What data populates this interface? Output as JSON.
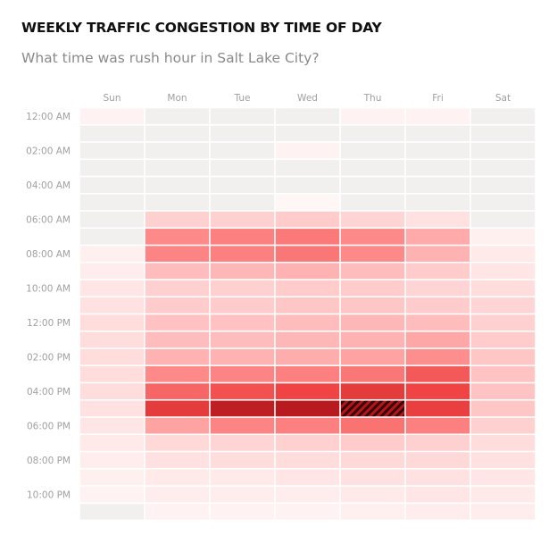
{
  "title": "WEEKLY TRAFFIC CONGESTION BY TIME OF DAY",
  "subtitle": "What time was rush hour in Salt Lake City?",
  "chart_data": {
    "type": "heatmap",
    "columns": [
      "Sun",
      "Mon",
      "Tue",
      "Wed",
      "Thu",
      "Fri",
      "Sat"
    ],
    "row_labels": [
      "12:00 AM",
      "",
      "02:00 AM",
      "",
      "04:00 AM",
      "",
      "06:00 AM",
      "",
      "08:00 AM",
      "",
      "10:00 AM",
      "",
      "12:00 PM",
      "",
      "02:00 PM",
      "",
      "04:00 PM",
      "",
      "06:00 PM",
      "",
      "08:00 PM",
      "",
      "10:00 PM",
      ""
    ],
    "values": [
      [
        0.04,
        -0.06,
        -0.06,
        -0.06,
        0.04,
        0.04,
        -0.06
      ],
      [
        -0.06,
        -0.06,
        -0.06,
        -0.06,
        -0.06,
        -0.06,
        -0.06
      ],
      [
        -0.06,
        -0.06,
        -0.06,
        0.04,
        -0.06,
        -0.06,
        -0.06
      ],
      [
        -0.06,
        -0.06,
        -0.06,
        -0.06,
        -0.06,
        -0.06,
        -0.06
      ],
      [
        -0.06,
        -0.06,
        -0.06,
        -0.06,
        -0.06,
        -0.06,
        -0.06
      ],
      [
        -0.06,
        -0.06,
        -0.06,
        0.02,
        -0.06,
        -0.06,
        -0.06
      ],
      [
        -0.06,
        0.2,
        0.2,
        0.22,
        0.18,
        0.12,
        -0.06
      ],
      [
        -0.06,
        0.48,
        0.52,
        0.55,
        0.48,
        0.35,
        0.05
      ],
      [
        0.05,
        0.5,
        0.52,
        0.56,
        0.48,
        0.32,
        0.08
      ],
      [
        0.06,
        0.28,
        0.3,
        0.32,
        0.28,
        0.22,
        0.1
      ],
      [
        0.1,
        0.2,
        0.2,
        0.22,
        0.22,
        0.18,
        0.14
      ],
      [
        0.12,
        0.22,
        0.22,
        0.24,
        0.24,
        0.22,
        0.18
      ],
      [
        0.14,
        0.26,
        0.26,
        0.28,
        0.3,
        0.28,
        0.2
      ],
      [
        0.14,
        0.28,
        0.28,
        0.3,
        0.32,
        0.36,
        0.22
      ],
      [
        0.14,
        0.32,
        0.32,
        0.34,
        0.38,
        0.46,
        0.24
      ],
      [
        0.14,
        0.48,
        0.5,
        0.52,
        0.56,
        0.7,
        0.25
      ],
      [
        0.14,
        0.64,
        0.74,
        0.8,
        0.84,
        0.8,
        0.25
      ],
      [
        0.12,
        0.84,
        0.96,
        0.98,
        1.0,
        0.82,
        0.24
      ],
      [
        0.1,
        0.38,
        0.5,
        0.52,
        0.58,
        0.52,
        0.2
      ],
      [
        0.08,
        0.16,
        0.18,
        0.2,
        0.22,
        0.2,
        0.14
      ],
      [
        0.06,
        0.12,
        0.14,
        0.14,
        0.16,
        0.16,
        0.12
      ],
      [
        0.05,
        0.08,
        0.08,
        0.1,
        0.12,
        0.12,
        0.1
      ],
      [
        0.04,
        0.06,
        0.06,
        0.06,
        0.08,
        0.1,
        0.08
      ],
      [
        -0.06,
        0.04,
        0.04,
        0.04,
        0.05,
        0.06,
        0.06
      ]
    ],
    "peak": {
      "row": 17,
      "col": 4
    },
    "color_high": "#b2161b",
    "color_low": "#ffffff",
    "color_empty": "#f2efef",
    "label_color": "#a0a0a0"
  }
}
